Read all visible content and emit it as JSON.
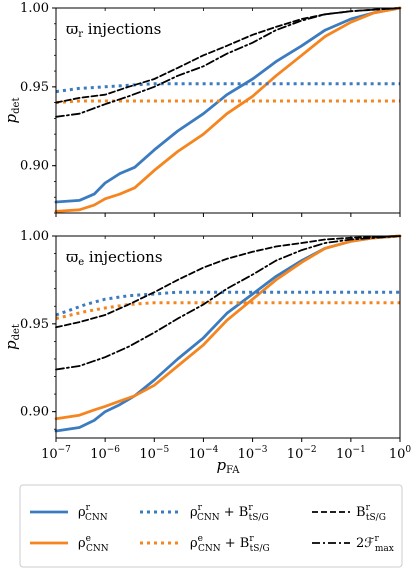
{
  "colors": {
    "blue": "#3b7bbf",
    "orange": "#f5851f",
    "black": "#000000"
  },
  "chart_data": [
    {
      "type": "line",
      "annotation": "ϖr injections",
      "ylabel": "pdet",
      "xlabel": "",
      "xscale": "log",
      "xlim": [
        1e-07,
        1
      ],
      "ylim": [
        0.87,
        1.0
      ],
      "yticks": [
        "0.90",
        "0.95",
        "1.00"
      ],
      "series": [
        {
          "key": "rho_r",
          "style": "solid",
          "color": "blue",
          "points": [
            [
              1e-07,
              0.877
            ],
            [
              3e-07,
              0.878
            ],
            [
              6e-07,
              0.882
            ],
            [
              1e-06,
              0.889
            ],
            [
              2e-06,
              0.895
            ],
            [
              4e-06,
              0.899
            ],
            [
              1e-05,
              0.91
            ],
            [
              3e-05,
              0.922
            ],
            [
              0.0001,
              0.933
            ],
            [
              0.0003,
              0.945
            ],
            [
              0.001,
              0.955
            ],
            [
              0.003,
              0.966
            ],
            [
              0.01,
              0.976
            ],
            [
              0.03,
              0.986
            ],
            [
              0.1,
              0.993
            ],
            [
              0.3,
              0.997
            ],
            [
              1,
              1.0
            ]
          ]
        },
        {
          "key": "rho_e",
          "style": "solid",
          "color": "orange",
          "points": [
            [
              1e-07,
              0.871
            ],
            [
              3e-07,
              0.872
            ],
            [
              6e-07,
              0.875
            ],
            [
              1e-06,
              0.879
            ],
            [
              2e-06,
              0.882
            ],
            [
              4e-06,
              0.886
            ],
            [
              1e-05,
              0.897
            ],
            [
              3e-05,
              0.909
            ],
            [
              0.0001,
              0.92
            ],
            [
              0.0003,
              0.933
            ],
            [
              0.001,
              0.944
            ],
            [
              0.003,
              0.957
            ],
            [
              0.01,
              0.97
            ],
            [
              0.03,
              0.982
            ],
            [
              0.1,
              0.991
            ],
            [
              0.3,
              0.997
            ],
            [
              1,
              1.0
            ]
          ]
        },
        {
          "key": "rho_r_plus_B",
          "style": "dotted",
          "color": "blue",
          "points": [
            [
              1e-07,
              0.947
            ],
            [
              3e-07,
              0.949
            ],
            [
              1e-06,
              0.95
            ],
            [
              3e-06,
              0.951
            ],
            [
              1e-05,
              0.952
            ],
            [
              1,
              0.952
            ]
          ]
        },
        {
          "key": "rho_e_plus_B",
          "style": "dotted",
          "color": "orange",
          "points": [
            [
              1e-07,
              0.94
            ],
            [
              3e-07,
              0.941
            ],
            [
              1e-06,
              0.941
            ],
            [
              1,
              0.941
            ]
          ]
        },
        {
          "key": "B",
          "style": "dashed",
          "color": "black",
          "points": [
            [
              1e-07,
              0.94
            ],
            [
              3e-07,
              0.943
            ],
            [
              1e-06,
              0.945
            ],
            [
              3e-06,
              0.95
            ],
            [
              1e-05,
              0.955
            ],
            [
              3e-05,
              0.962
            ],
            [
              0.0001,
              0.97
            ],
            [
              0.0003,
              0.976
            ],
            [
              0.001,
              0.983
            ],
            [
              0.003,
              0.988
            ],
            [
              0.01,
              0.993
            ],
            [
              0.03,
              0.996
            ],
            [
              0.1,
              0.998
            ],
            [
              1,
              1.0
            ]
          ]
        },
        {
          "key": "F",
          "style": "dashdot",
          "color": "black",
          "points": [
            [
              1e-07,
              0.931
            ],
            [
              3e-07,
              0.933
            ],
            [
              1e-06,
              0.939
            ],
            [
              3e-06,
              0.944
            ],
            [
              1e-05,
              0.95
            ],
            [
              3e-05,
              0.957
            ],
            [
              0.0001,
              0.963
            ],
            [
              0.0003,
              0.971
            ],
            [
              0.001,
              0.978
            ],
            [
              0.003,
              0.986
            ],
            [
              0.01,
              0.992
            ],
            [
              0.03,
              0.996
            ],
            [
              0.1,
              0.998
            ],
            [
              1,
              1.0
            ]
          ]
        }
      ]
    },
    {
      "type": "line",
      "annotation": "ϖe injections",
      "ylabel": "pdet",
      "xlabel": "pFA",
      "xscale": "log",
      "xlim": [
        1e-07,
        1
      ],
      "ylim": [
        0.885,
        1.0
      ],
      "yticks": [
        "0.90",
        "0.95",
        "1.00"
      ],
      "series": [
        {
          "key": "rho_r",
          "style": "solid",
          "color": "blue",
          "points": [
            [
              1e-07,
              0.889
            ],
            [
              3e-07,
              0.891
            ],
            [
              6e-07,
              0.895
            ],
            [
              1e-06,
              0.9
            ],
            [
              2e-06,
              0.904
            ],
            [
              4e-06,
              0.909
            ],
            [
              1e-05,
              0.918
            ],
            [
              3e-05,
              0.93
            ],
            [
              0.0001,
              0.942
            ],
            [
              0.0003,
              0.956
            ],
            [
              0.001,
              0.967
            ],
            [
              0.003,
              0.977
            ],
            [
              0.01,
              0.986
            ],
            [
              0.03,
              0.993
            ],
            [
              0.1,
              0.997
            ],
            [
              0.3,
              0.999
            ],
            [
              1,
              1.0
            ]
          ]
        },
        {
          "key": "rho_e",
          "style": "solid",
          "color": "orange",
          "points": [
            [
              1e-07,
              0.896
            ],
            [
              3e-07,
              0.898
            ],
            [
              6e-07,
              0.901
            ],
            [
              1e-06,
              0.903
            ],
            [
              2e-06,
              0.906
            ],
            [
              4e-06,
              0.909
            ],
            [
              1e-05,
              0.915
            ],
            [
              3e-05,
              0.926
            ],
            [
              0.0001,
              0.938
            ],
            [
              0.0003,
              0.952
            ],
            [
              0.001,
              0.964
            ],
            [
              0.003,
              0.975
            ],
            [
              0.01,
              0.985
            ],
            [
              0.03,
              0.993
            ],
            [
              0.1,
              0.997
            ],
            [
              0.3,
              0.999
            ],
            [
              1,
              1.0
            ]
          ]
        },
        {
          "key": "rho_r_plus_B",
          "style": "dotted",
          "color": "blue",
          "points": [
            [
              1e-07,
              0.955
            ],
            [
              2e-07,
              0.958
            ],
            [
              4e-07,
              0.961
            ],
            [
              1e-06,
              0.964
            ],
            [
              3e-06,
              0.966
            ],
            [
              1e-05,
              0.967
            ],
            [
              3e-05,
              0.968
            ],
            [
              1,
              0.968
            ]
          ]
        },
        {
          "key": "rho_e_plus_B",
          "style": "dotted",
          "color": "orange",
          "points": [
            [
              1e-07,
              0.953
            ],
            [
              2e-07,
              0.955
            ],
            [
              4e-07,
              0.957
            ],
            [
              1e-06,
              0.959
            ],
            [
              3e-06,
              0.961
            ],
            [
              1e-05,
              0.962
            ],
            [
              1,
              0.962
            ]
          ]
        },
        {
          "key": "B",
          "style": "dashed",
          "color": "black",
          "points": [
            [
              1e-07,
              0.948
            ],
            [
              3e-07,
              0.951
            ],
            [
              1e-06,
              0.955
            ],
            [
              3e-06,
              0.961
            ],
            [
              1e-05,
              0.968
            ],
            [
              3e-05,
              0.975
            ],
            [
              0.0001,
              0.982
            ],
            [
              0.0003,
              0.987
            ],
            [
              0.001,
              0.991
            ],
            [
              0.003,
              0.994
            ],
            [
              0.01,
              0.996
            ],
            [
              0.03,
              0.998
            ],
            [
              0.1,
              0.999
            ],
            [
              1,
              1.0
            ]
          ]
        },
        {
          "key": "F",
          "style": "dashdot",
          "color": "black",
          "points": [
            [
              1e-07,
              0.924
            ],
            [
              3e-07,
              0.926
            ],
            [
              1e-06,
              0.931
            ],
            [
              3e-06,
              0.937
            ],
            [
              1e-05,
              0.945
            ],
            [
              3e-05,
              0.953
            ],
            [
              0.0001,
              0.961
            ],
            [
              0.0003,
              0.97
            ],
            [
              0.001,
              0.978
            ],
            [
              0.003,
              0.986
            ],
            [
              0.01,
              0.992
            ],
            [
              0.03,
              0.996
            ],
            [
              0.1,
              0.998
            ],
            [
              1,
              1.0
            ]
          ]
        }
      ]
    }
  ],
  "xtick_labels": [
    "10−7",
    "10−6",
    "10−5",
    "10−4",
    "10−3",
    "10−2",
    "10−1",
    "100"
  ],
  "legend": {
    "placement": "bottom",
    "entries": [
      {
        "key": "rho_r",
        "label": "ρrCNN"
      },
      {
        "key": "rho_e",
        "label": "ρeCNN"
      },
      {
        "key": "rho_r_plus_B",
        "label": "ρrCNN + BrtS/G"
      },
      {
        "key": "rho_e_plus_B",
        "label": "ρeCNN + BrtS/G"
      },
      {
        "key": "B",
        "label": "BrtS/G"
      },
      {
        "key": "F",
        "label": "2Frmax"
      }
    ]
  }
}
